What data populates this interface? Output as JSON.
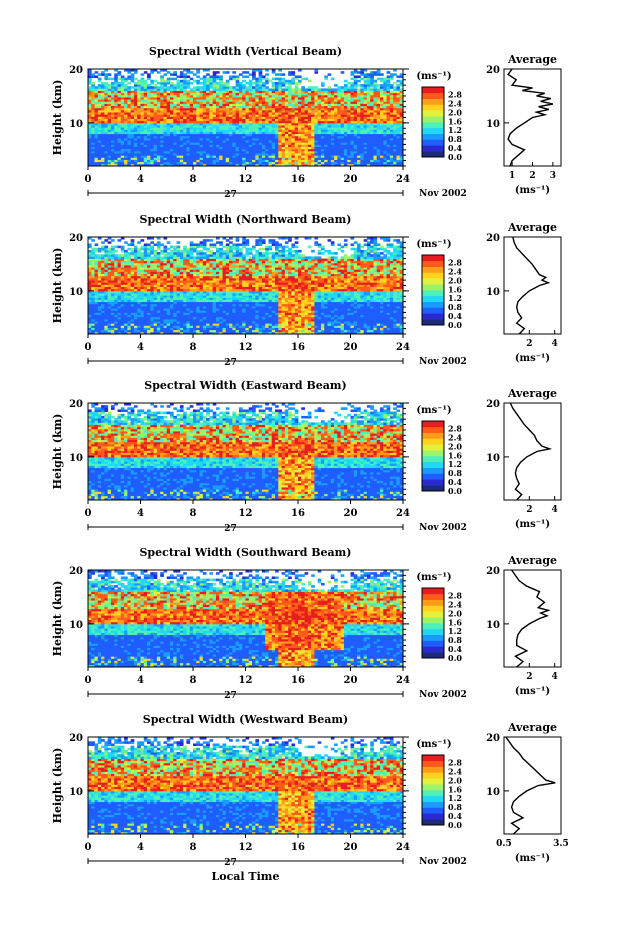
{
  "figure": {
    "xlabel": "Local Time",
    "date_label": "Nov 2002",
    "day_label": "27"
  },
  "colorbar": {
    "unit": "(ms⁻¹)",
    "ticks": [
      "0.0",
      "0.4",
      "0.8",
      "1.2",
      "1.6",
      "2.0",
      "2.4",
      "2.8"
    ],
    "colors": [
      "#1d2a7a",
      "#2a2ad0",
      "#1f5dff",
      "#1a9bff",
      "#21d7f5",
      "#4cf0b8",
      "#9cf36a",
      "#e2f23c",
      "#ffd21f",
      "#ff9d1b",
      "#ff5a1a",
      "#e61e1e"
    ]
  },
  "chart_data": [
    {
      "type": "heatmap",
      "title": "Spectral Width (Vertical Beam)",
      "ylabel": "Height (km)",
      "xlim": [
        0,
        24
      ],
      "ylim": [
        2,
        20
      ],
      "x_ticks": [
        0,
        4,
        8,
        12,
        16,
        20,
        24
      ],
      "y_ticks": [
        10,
        20
      ],
      "z_unit": "ms⁻¹",
      "zlim": [
        0,
        3.0
      ]
    },
    {
      "type": "line",
      "title": "Average",
      "xlabel": "(ms⁻¹)",
      "x_ticks": [
        1,
        2,
        3
      ],
      "xlim": [
        0.6,
        3.4
      ],
      "y_ticks": [
        10,
        20
      ],
      "ylim": [
        2,
        20
      ],
      "profile": [
        [
          0.9,
          2
        ],
        [
          1.0,
          3
        ],
        [
          1.3,
          4
        ],
        [
          1.6,
          5
        ],
        [
          1.0,
          6
        ],
        [
          0.8,
          7
        ],
        [
          0.9,
          8
        ],
        [
          1.2,
          9
        ],
        [
          1.6,
          10
        ],
        [
          2.0,
          11
        ],
        [
          2.6,
          11.5
        ],
        [
          2.2,
          12
        ],
        [
          2.8,
          12.5
        ],
        [
          2.3,
          13
        ],
        [
          3.0,
          13.5
        ],
        [
          2.4,
          14
        ],
        [
          2.9,
          14.5
        ],
        [
          2.2,
          15
        ],
        [
          2.6,
          15.5
        ],
        [
          1.5,
          16
        ],
        [
          2.0,
          16.5
        ],
        [
          1.0,
          17
        ],
        [
          1.2,
          18
        ],
        [
          0.8,
          19
        ],
        [
          1.0,
          20
        ]
      ]
    },
    {
      "type": "heatmap",
      "title": "Spectral Width (Northward Beam)",
      "ylabel": "Height (km)",
      "xlim": [
        0,
        24
      ],
      "ylim": [
        2,
        20
      ],
      "x_ticks": [
        0,
        4,
        8,
        12,
        16,
        20,
        24
      ],
      "y_ticks": [
        10,
        20
      ],
      "z_unit": "ms⁻¹",
      "zlim": [
        0,
        3.0
      ]
    },
    {
      "type": "line",
      "title": "Average",
      "xlabel": "(ms⁻¹)",
      "x_ticks": [
        2,
        4
      ],
      "xlim": [
        0,
        4.5
      ],
      "y_ticks": [
        10,
        20
      ],
      "ylim": [
        2,
        20
      ],
      "profile": [
        [
          1.2,
          2
        ],
        [
          1.6,
          3
        ],
        [
          1.0,
          4
        ],
        [
          1.4,
          5
        ],
        [
          1.1,
          6
        ],
        [
          1.0,
          7
        ],
        [
          1.1,
          8
        ],
        [
          1.5,
          9
        ],
        [
          2.0,
          10
        ],
        [
          2.8,
          11
        ],
        [
          3.5,
          11.5
        ],
        [
          3.0,
          12
        ],
        [
          3.3,
          12.5
        ],
        [
          2.8,
          13
        ],
        [
          2.5,
          14
        ],
        [
          2.2,
          15
        ],
        [
          1.8,
          16
        ],
        [
          1.4,
          17
        ],
        [
          1.0,
          18
        ],
        [
          0.8,
          19
        ],
        [
          0.7,
          20
        ]
      ]
    },
    {
      "type": "heatmap",
      "title": "Spectral Width (Eastward Beam)",
      "ylabel": "Height (km)",
      "xlim": [
        0,
        24
      ],
      "ylim": [
        2,
        20
      ],
      "x_ticks": [
        0,
        4,
        8,
        12,
        16,
        20,
        24
      ],
      "y_ticks": [
        10,
        20
      ],
      "z_unit": "ms⁻¹",
      "zlim": [
        0,
        3.0
      ]
    },
    {
      "type": "line",
      "title": "Average",
      "xlabel": "(ms⁻¹)",
      "x_ticks": [
        2,
        4
      ],
      "xlim": [
        0,
        4.5
      ],
      "y_ticks": [
        10,
        20
      ],
      "ylim": [
        2,
        20
      ],
      "profile": [
        [
          1.0,
          2
        ],
        [
          1.4,
          3
        ],
        [
          0.9,
          4
        ],
        [
          1.2,
          5
        ],
        [
          1.0,
          6
        ],
        [
          0.9,
          7
        ],
        [
          1.0,
          8
        ],
        [
          1.3,
          9
        ],
        [
          1.8,
          10
        ],
        [
          2.6,
          11
        ],
        [
          3.6,
          11.5
        ],
        [
          3.0,
          12
        ],
        [
          2.6,
          13
        ],
        [
          2.4,
          14
        ],
        [
          2.0,
          15
        ],
        [
          1.6,
          16
        ],
        [
          1.3,
          17
        ],
        [
          1.0,
          18
        ],
        [
          0.7,
          19
        ],
        [
          0.5,
          20
        ]
      ]
    },
    {
      "type": "heatmap",
      "title": "Spectral Width (Southward Beam)",
      "ylabel": "Height (km)",
      "xlim": [
        0,
        24
      ],
      "ylim": [
        2,
        20
      ],
      "x_ticks": [
        0,
        4,
        8,
        12,
        16,
        20,
        24
      ],
      "y_ticks": [
        10,
        20
      ],
      "z_unit": "ms⁻¹",
      "zlim": [
        0,
        3.0
      ]
    },
    {
      "type": "line",
      "title": "Average",
      "xlabel": "(ms⁻¹)",
      "x_ticks": [
        2,
        4
      ],
      "xlim": [
        0,
        4.5
      ],
      "y_ticks": [
        10,
        20
      ],
      "ylim": [
        2,
        20
      ],
      "profile": [
        [
          1.0,
          2
        ],
        [
          1.5,
          3
        ],
        [
          0.9,
          4
        ],
        [
          1.8,
          5
        ],
        [
          1.0,
          6
        ],
        [
          1.0,
          7
        ],
        [
          1.1,
          8
        ],
        [
          1.4,
          9
        ],
        [
          2.0,
          10
        ],
        [
          2.8,
          11
        ],
        [
          3.4,
          11.5
        ],
        [
          2.9,
          12
        ],
        [
          3.5,
          12.5
        ],
        [
          2.7,
          13
        ],
        [
          3.2,
          14
        ],
        [
          2.6,
          15
        ],
        [
          2.8,
          16
        ],
        [
          1.8,
          17
        ],
        [
          1.2,
          18
        ],
        [
          0.9,
          19
        ],
        [
          0.6,
          20
        ]
      ]
    },
    {
      "type": "heatmap",
      "title": "Spectral Width (Westward Beam)",
      "ylabel": "Height (km)",
      "xlim": [
        0,
        24
      ],
      "ylim": [
        2,
        20
      ],
      "x_ticks": [
        0,
        4,
        8,
        12,
        16,
        20,
        24
      ],
      "y_ticks": [
        10,
        20
      ],
      "z_unit": "ms⁻¹",
      "zlim": [
        0,
        3.0
      ]
    },
    {
      "type": "line",
      "title": "Average",
      "xlabel": "(ms⁻¹)",
      "x_ticks": [
        "0.5",
        "3.5"
      ],
      "xlim": [
        0.5,
        3.5
      ],
      "y_ticks": [
        10,
        20
      ],
      "ylim": [
        2,
        20
      ],
      "profile": [
        [
          1.0,
          2
        ],
        [
          1.3,
          3
        ],
        [
          0.9,
          4
        ],
        [
          1.5,
          5
        ],
        [
          1.0,
          6
        ],
        [
          0.9,
          7
        ],
        [
          1.0,
          8
        ],
        [
          1.3,
          9
        ],
        [
          1.7,
          10
        ],
        [
          2.3,
          11
        ],
        [
          3.2,
          11.5
        ],
        [
          2.7,
          12
        ],
        [
          2.4,
          13
        ],
        [
          2.1,
          14
        ],
        [
          1.8,
          15
        ],
        [
          1.5,
          16
        ],
        [
          1.3,
          17
        ],
        [
          1.0,
          18
        ],
        [
          0.8,
          19
        ],
        [
          0.6,
          20
        ]
      ]
    }
  ]
}
